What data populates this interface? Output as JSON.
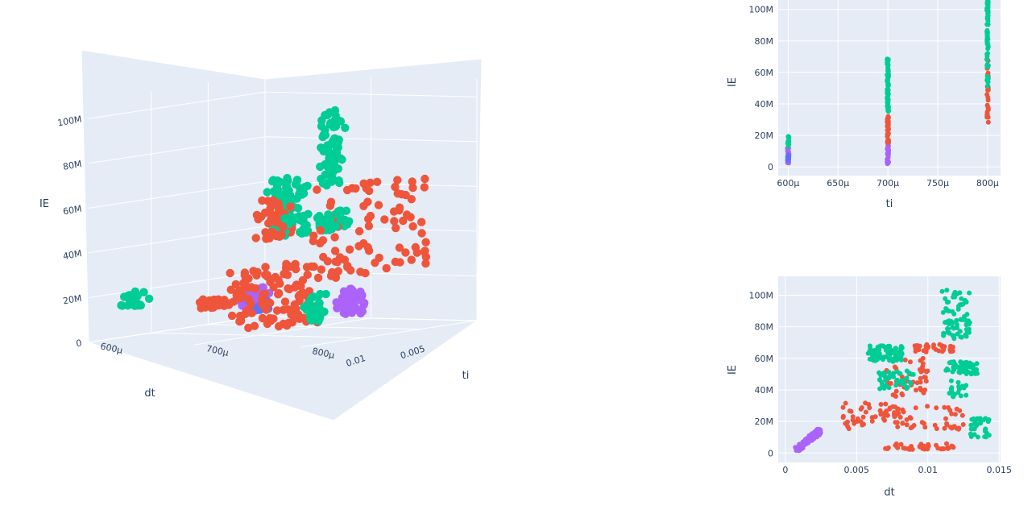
{
  "colors": {
    "plot_bg": "#E5ECF6",
    "grid": "#ffffff",
    "text": "#2a3f5f",
    "blue": "#636EFA",
    "red": "#EF553B",
    "green": "#00CC96",
    "purple": "#AB63FA"
  },
  "chart_data": [
    {
      "type": "scatter3d",
      "xlabel": "dt",
      "ylabel": "ti",
      "zlabel": "IE",
      "x_ticks": [
        "0.005",
        "0.01"
      ],
      "y_ticks": [
        "600μ",
        "700μ",
        "800μ"
      ],
      "z_ticks": [
        "0",
        "20M",
        "40M",
        "60M",
        "80M",
        "100M"
      ],
      "xlim": [
        0,
        0.0155
      ],
      "ylim": [
        0.0006,
        0.0008
      ],
      "zlim": [
        0,
        108000000
      ],
      "series": [
        {
          "color_key": "blue",
          "clusters": [
            {
              "x": [
                0.0014,
                0.002
              ],
              "y": [
                0.0006,
                0.00062
              ],
              "z": [
                4000000,
                10000000
              ],
              "n": 40
            }
          ]
        },
        {
          "color_key": "purple",
          "clusters": [
            {
              "x": [
                0.001,
                0.0024
              ],
              "y": [
                0.0006,
                0.00062
              ],
              "z": [
                5000000,
                14000000
              ],
              "n": 40
            },
            {
              "x": [
                0.001,
                0.0024
              ],
              "y": [
                0.00069,
                0.00071
              ],
              "z": [
                3000000,
                14000000
              ],
              "n": 60
            }
          ]
        },
        {
          "color_key": "red",
          "clusters": [
            {
              "x": [
                0.0045,
                0.006
              ],
              "y": [
                0.0006,
                0.00062
              ],
              "z": [
                8000000,
                12000000
              ],
              "n": 30
            },
            {
              "x": [
                0.005,
                0.012
              ],
              "y": [
                0.00069,
                0.00071
              ],
              "z": [
                2000000,
                30000000
              ],
              "n": 110
            },
            {
              "x": [
                0.0075,
                0.0095
              ],
              "y": [
                0.00069,
                0.00071
              ],
              "z": [
                42000000,
                60000000
              ],
              "n": 50
            },
            {
              "x": [
                0.004,
                0.014
              ],
              "y": [
                0.00079,
                0.0008
              ],
              "z": [
                28000000,
                70000000
              ],
              "n": 90
            }
          ]
        },
        {
          "color_key": "green",
          "clusters": [
            {
              "x": [
                0.006,
                0.0085
              ],
              "y": [
                0.00069,
                0.00071
              ],
              "z": [
                42000000,
                68000000
              ],
              "n": 90
            },
            {
              "x": [
                0.011,
                0.0135
              ],
              "y": [
                0.00079,
                0.0008
              ],
              "z": [
                50000000,
                58000000
              ],
              "n": 45
            },
            {
              "x": [
                0.0115,
                0.013
              ],
              "y": [
                0.00079,
                0.0008
              ],
              "z": [
                70000000,
                104000000
              ],
              "n": 70
            },
            {
              "x": [
                0.013,
                0.0145
              ],
              "y": [
                0.00079,
                0.0008
              ],
              "z": [
                10000000,
                22000000
              ],
              "n": 30
            },
            {
              "x": [
                0.0115,
                0.013
              ],
              "y": [
                0.0006,
                0.00062
              ],
              "z": [
                13000000,
                21000000
              ],
              "n": 20
            }
          ]
        }
      ]
    },
    {
      "type": "scatter",
      "xlabel": "ti",
      "ylabel": "IE",
      "x_ticks": [
        "600μ",
        "650μ",
        "700μ",
        "750μ",
        "800μ"
      ],
      "y_ticks": [
        "0",
        "20M",
        "40M",
        "60M",
        "80M",
        "100M"
      ],
      "xlim": [
        0.00059,
        0.000813
      ],
      "ylim": [
        -5500000,
        106000000
      ],
      "columns": [
        {
          "x": 0.0006,
          "color_key": "purple",
          "z": [
            1500000,
            12000000
          ],
          "n": 20
        },
        {
          "x": 0.0006,
          "color_key": "blue",
          "z": [
            4000000,
            10000000
          ],
          "n": 10
        },
        {
          "x": 0.0006,
          "color_key": "green",
          "z": [
            13000000,
            21000000
          ],
          "n": 12
        },
        {
          "x": 0.0007,
          "color_key": "purple",
          "z": [
            2000000,
            15000000
          ],
          "n": 25
        },
        {
          "x": 0.0007,
          "color_key": "red",
          "z": [
            15000000,
            33000000
          ],
          "n": 25
        },
        {
          "x": 0.0007,
          "color_key": "green",
          "z": [
            33000000,
            69000000
          ],
          "n": 60
        },
        {
          "x": 0.0008,
          "color_key": "red",
          "z": [
            28000000,
            70000000
          ],
          "n": 30
        },
        {
          "x": 0.0008,
          "color_key": "green",
          "z": [
            50000000,
            106000000
          ],
          "n": 60
        }
      ]
    },
    {
      "type": "scatter",
      "xlabel": "dt",
      "ylabel": "IE",
      "x_ticks": [
        "0",
        "0.005",
        "0.01",
        "0.015"
      ],
      "y_ticks": [
        "0",
        "20M",
        "40M",
        "60M",
        "80M",
        "100M"
      ],
      "xlim": [
        -0.0005,
        0.0151
      ],
      "ylim": [
        -6000000,
        112000000
      ],
      "clusters": [
        {
          "color_key": "purple",
          "x": [
            0.0008,
            0.0024
          ],
          "z": [
            2000000,
            14000000
          ],
          "n": 140,
          "diag": true
        },
        {
          "color_key": "red",
          "x": [
            0.004,
            0.008
          ],
          "z": [
            15000000,
            32000000
          ],
          "n": 45
        },
        {
          "color_key": "red",
          "x": [
            0.007,
            0.0125
          ],
          "z": [
            15000000,
            30000000
          ],
          "n": 50
        },
        {
          "color_key": "red",
          "x": [
            0.007,
            0.012
          ],
          "z": [
            2000000,
            6000000
          ],
          "n": 40
        },
        {
          "color_key": "red",
          "x": [
            0.007,
            0.01
          ],
          "z": [
            35000000,
            60000000
          ],
          "n": 50
        },
        {
          "color_key": "red",
          "x": [
            0.009,
            0.012
          ],
          "z": [
            64000000,
            69000000
          ],
          "n": 30
        },
        {
          "color_key": "green",
          "x": [
            0.0058,
            0.0082
          ],
          "z": [
            58000000,
            68000000
          ],
          "n": 80
        },
        {
          "color_key": "green",
          "x": [
            0.0065,
            0.009
          ],
          "z": [
            40000000,
            52000000
          ],
          "n": 40
        },
        {
          "color_key": "green",
          "x": [
            0.0112,
            0.0135
          ],
          "z": [
            50000000,
            58000000
          ],
          "n": 50
        },
        {
          "color_key": "green",
          "x": [
            0.011,
            0.013
          ],
          "z": [
            72000000,
            104000000
          ],
          "n": 70
        },
        {
          "color_key": "green",
          "x": [
            0.0115,
            0.0128
          ],
          "z": [
            35000000,
            46000000
          ],
          "n": 20
        },
        {
          "color_key": "green",
          "x": [
            0.013,
            0.0143
          ],
          "z": [
            10000000,
            22000000
          ],
          "n": 30
        }
      ]
    }
  ]
}
